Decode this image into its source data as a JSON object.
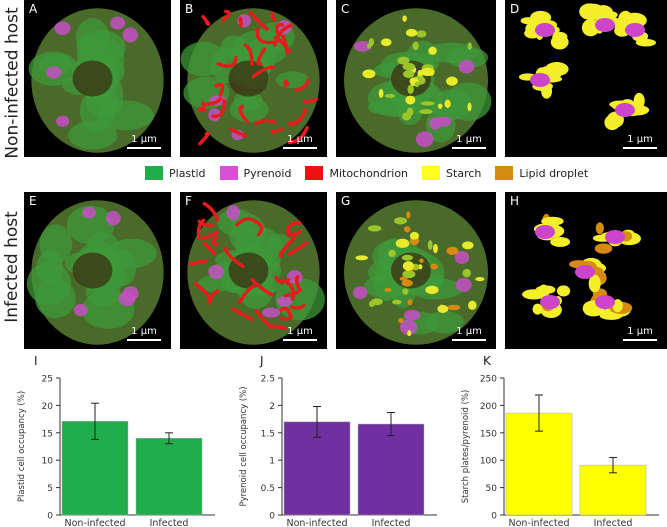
{
  "row_labels": {
    "top": "Non-infected host",
    "bottom": "Infected host"
  },
  "panels": [
    {
      "letter": "A",
      "scale": "1 µm",
      "kind": "plastid"
    },
    {
      "letter": "B",
      "scale": "1 µm",
      "kind": "mito"
    },
    {
      "letter": "C",
      "scale": "1 µm",
      "kind": "starch"
    },
    {
      "letter": "D",
      "scale": "1 µm",
      "kind": "iso"
    },
    {
      "letter": "E",
      "scale": "1 µm",
      "kind": "plastid"
    },
    {
      "letter": "F",
      "scale": "1 µm",
      "kind": "mito"
    },
    {
      "letter": "G",
      "scale": "1 µm",
      "kind": "starch"
    },
    {
      "letter": "H",
      "scale": "1 µm",
      "kind": "iso2"
    }
  ],
  "legend": [
    {
      "label": "Plastid",
      "color": "#1fae4b"
    },
    {
      "label": "Pyrenoid",
      "color": "#d84fd8"
    },
    {
      "label": "Mitochondrion",
      "color": "#ee1111"
    },
    {
      "label": "Starch",
      "color": "#ffff22"
    },
    {
      "label": "Lipid droplet",
      "color": "#d68a10"
    }
  ],
  "chart_data": [
    {
      "letter": "I",
      "type": "bar",
      "categories": [
        "Non-infected",
        "Infected"
      ],
      "values": [
        17.1,
        14.0
      ],
      "errors": [
        3.3,
        1.0
      ],
      "ylabel": "Plastid cell occupancy (%)",
      "ylim": [
        0,
        25
      ],
      "yticks": [
        "0",
        "5",
        "10",
        "15",
        "20",
        "25"
      ],
      "color": "#1fae4b"
    },
    {
      "letter": "J",
      "type": "bar",
      "categories": [
        "Non-infected",
        "Infected"
      ],
      "values": [
        1.7,
        1.66
      ],
      "errors": [
        0.28,
        0.21
      ],
      "ylabel": "Pyrenoid cell occupancy (%)",
      "ylim": [
        0,
        2.5
      ],
      "yticks": [
        "0",
        "0.5",
        "1",
        "1.5",
        "2",
        "2.5"
      ],
      "color": "#7030a0"
    },
    {
      "letter": "K",
      "type": "bar",
      "categories": [
        "Non-infected",
        "Infected"
      ],
      "values": [
        186,
        91
      ],
      "errors": [
        33,
        14
      ],
      "ylabel": "Starch plates/pyrenoid (%)",
      "ylim": [
        0,
        250
      ],
      "yticks": [
        "0",
        "50",
        "100",
        "150",
        "200",
        "250"
      ],
      "color": "#ffff00"
    }
  ]
}
